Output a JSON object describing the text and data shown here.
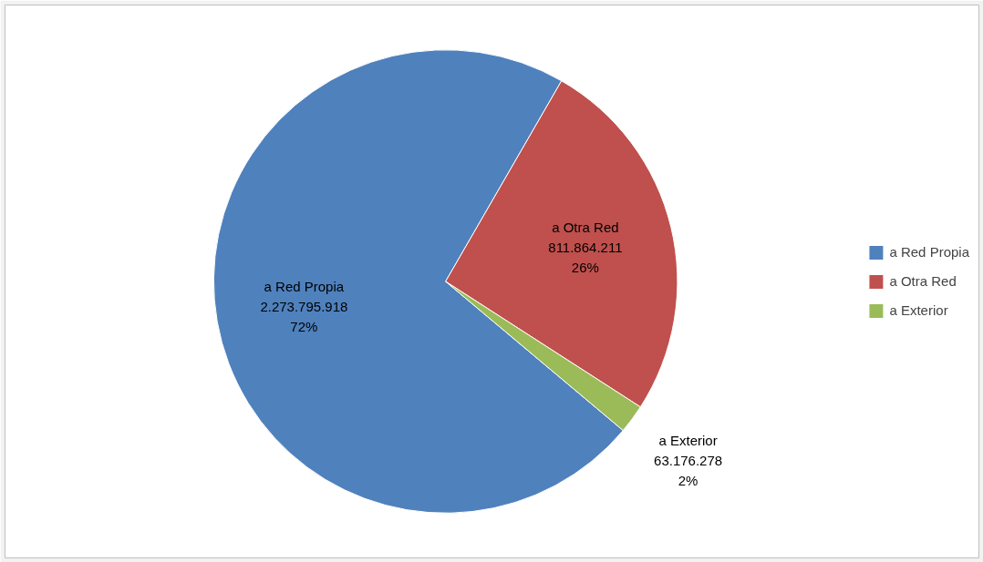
{
  "chart_data": {
    "type": "pie",
    "categories": [
      "a Red Propia",
      "a Otra Red",
      "a Exterior"
    ],
    "values": [
      2273795918,
      811864211,
      63176278
    ],
    "colors": [
      "#4f81bd",
      "#c0504d",
      "#9bbb59"
    ],
    "value_labels": [
      "2.273.795.918\n72%",
      "811.864.211\n26%",
      "63.176.278\n2%"
    ],
    "legend": "right"
  }
}
